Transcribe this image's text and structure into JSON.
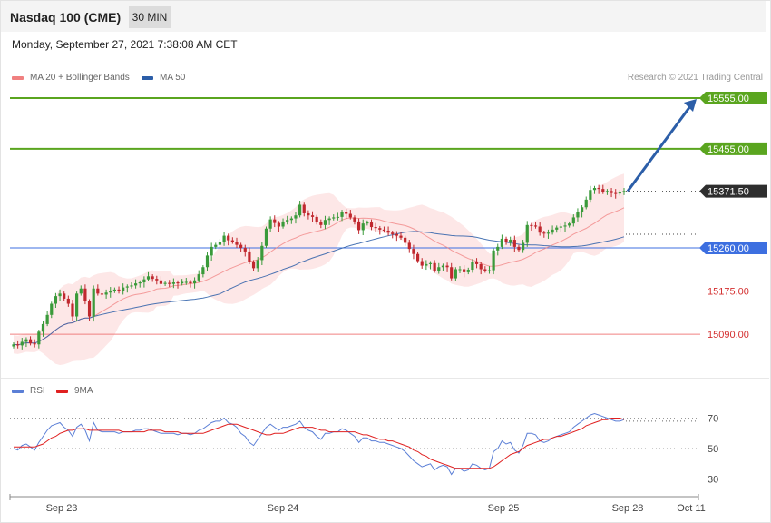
{
  "header": {
    "title": "Nasdaq 100 (CME)",
    "timeframe": "30 MIN"
  },
  "timestamp": "Monday, September 27, 2021 7:38:08 AM CET",
  "legend": {
    "main": [
      {
        "label": "MA 20 + Bollinger Bands",
        "color": "#f08080"
      },
      {
        "label": "MA 50",
        "color": "#2c5ea8"
      }
    ],
    "rsi": [
      {
        "label": "RSI",
        "color": "#5b7fd6"
      },
      {
        "label": "9MA",
        "color": "#e02020"
      }
    ]
  },
  "credit": "Research © 2021 Trading Central",
  "colors": {
    "up_candle": "#3a9a3a",
    "down_candle": "#c0282e",
    "bollinger_fill": "#fde3e3",
    "resistance": "#5aa51f",
    "pivot": "#3d6fe0",
    "support": "#f08080",
    "arrow": "#2c5ea8"
  },
  "chart_data": [
    {
      "type": "candlestick",
      "title": "Nasdaq 100 (CME)",
      "ylim": [
        15000,
        15565
      ],
      "x_ticks": [
        "Sep 23",
        "Sep 24",
        "Sep 25",
        "Sep 28",
        "Oct 11"
      ],
      "levels": [
        {
          "value": 15555.0,
          "label": "15555.00",
          "kind": "resistance"
        },
        {
          "value": 15455.0,
          "label": "15455.00",
          "kind": "resistance"
        },
        {
          "value": 15371.5,
          "label": "15371.50",
          "kind": "last"
        },
        {
          "value": 15260.0,
          "label": "15260.00",
          "kind": "pivot"
        },
        {
          "value": 15175.0,
          "label": "15175.00",
          "kind": "support"
        },
        {
          "value": 15090.0,
          "label": "15090.00",
          "kind": "support"
        }
      ],
      "close": [
        15070,
        15068,
        15075,
        15080,
        15072,
        15070,
        15095,
        15110,
        15128,
        15150,
        15165,
        15170,
        15160,
        15150,
        15125,
        15170,
        15180,
        15155,
        15125,
        15180,
        15170,
        15168,
        15172,
        15175,
        15178,
        15176,
        15182,
        15184,
        15186,
        15190,
        15192,
        15198,
        15204,
        15199,
        15196,
        15189,
        15191,
        15189,
        15192,
        15190,
        15193,
        15193,
        15190,
        15196,
        15208,
        15222,
        15245,
        15262,
        15266,
        15272,
        15284,
        15275,
        15272,
        15266,
        15260,
        15253,
        15232,
        15220,
        15236,
        15264,
        15298,
        15316,
        15309,
        15302,
        15312,
        15315,
        15318,
        15324,
        15345,
        15328,
        15324,
        15321,
        15310,
        15305,
        15315,
        15318,
        15320,
        15321,
        15331,
        15327,
        15320,
        15312,
        15295,
        15308,
        15310,
        15301,
        15299,
        15296,
        15294,
        15290,
        15287,
        15284,
        15280,
        15270,
        15258,
        15248,
        15234,
        15225,
        15228,
        15230,
        15215,
        15222,
        15225,
        15222,
        15200,
        15218,
        15218,
        15212,
        15217,
        15232,
        15228,
        15218,
        15215,
        15216,
        15255,
        15262,
        15278,
        15272,
        15276,
        15262,
        15256,
        15270,
        15305,
        15304,
        15302,
        15290,
        15288,
        15290,
        15296,
        15300,
        15302,
        15304,
        15308,
        15320,
        15330,
        15340,
        15355,
        15374,
        15378,
        15376,
        15370,
        15372,
        15368,
        15367,
        15370,
        15372
      ]
    },
    {
      "type": "line",
      "title": "RSI",
      "ylim": [
        30,
        70
      ],
      "y_ticks": [
        70,
        50,
        30
      ],
      "series": [
        {
          "name": "RSI",
          "values": [
            50,
            49,
            52,
            53,
            51,
            49,
            54,
            58,
            62,
            65,
            66,
            67,
            64,
            62,
            58,
            64,
            66,
            62,
            55,
            67,
            62,
            61,
            61,
            61,
            61,
            60,
            61,
            61,
            61,
            62,
            62,
            63,
            63,
            62,
            61,
            60,
            60,
            60,
            60,
            59,
            60,
            60,
            59,
            60,
            62,
            63,
            65,
            67,
            68,
            68,
            70,
            67,
            66,
            64,
            60,
            58,
            54,
            52,
            56,
            60,
            64,
            66,
            64,
            62,
            64,
            64,
            65,
            66,
            68,
            64,
            62,
            61,
            58,
            56,
            60,
            60,
            61,
            61,
            63,
            62,
            60,
            58,
            54,
            57,
            57,
            55,
            55,
            54,
            54,
            53,
            52,
            51,
            50,
            48,
            45,
            42,
            40,
            38,
            39,
            40,
            36,
            38,
            39,
            38,
            33,
            37,
            37,
            35,
            36,
            40,
            39,
            37,
            36,
            37,
            48,
            50,
            55,
            53,
            54,
            49,
            47,
            52,
            60,
            60,
            59,
            55,
            54,
            55,
            57,
            58,
            59,
            60,
            61,
            64,
            66,
            68,
            70,
            72,
            73,
            72,
            71,
            70,
            69,
            68,
            68,
            69
          ]
        },
        {
          "name": "9MA",
          "values": [
            51,
            51,
            51,
            51,
            51,
            51,
            52,
            53,
            55,
            57,
            58,
            60,
            61,
            62,
            62,
            63,
            63,
            63,
            62,
            62,
            62,
            62,
            62,
            62,
            62,
            62,
            61,
            61,
            61,
            61,
            61,
            61,
            62,
            62,
            62,
            62,
            61,
            61,
            61,
            61,
            60,
            60,
            60,
            60,
            60,
            60,
            61,
            62,
            63,
            64,
            65,
            66,
            66,
            66,
            65,
            64,
            63,
            62,
            61,
            60,
            59,
            59,
            60,
            60,
            60,
            61,
            62,
            63,
            64,
            64,
            64,
            64,
            63,
            62,
            62,
            61,
            61,
            61,
            61,
            61,
            61,
            61,
            60,
            59,
            59,
            58,
            57,
            56,
            56,
            55,
            55,
            54,
            53,
            52,
            51,
            49,
            48,
            46,
            45,
            43,
            42,
            41,
            40,
            39,
            38,
            37,
            37,
            37,
            37,
            37,
            37,
            37,
            37,
            37,
            38,
            40,
            42,
            44,
            46,
            47,
            48,
            50,
            52,
            53,
            54,
            55,
            56,
            56,
            57,
            58,
            58,
            59,
            60,
            61,
            62,
            63,
            65,
            66,
            67,
            68,
            69,
            69,
            70,
            70,
            70,
            69
          ]
        }
      ]
    }
  ]
}
